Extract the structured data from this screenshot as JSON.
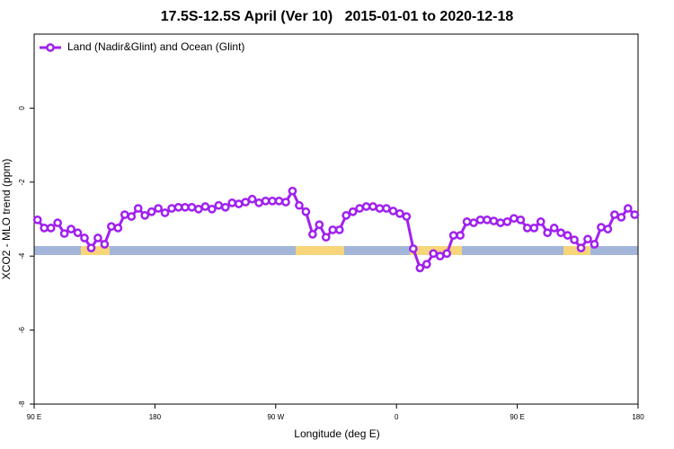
{
  "chart_data": {
    "type": "line",
    "title": "17.5S-12.5S April (Ver 10)   2015-01-01 to 2020-12-18",
    "xlabel": "Longitude (deg E)",
    "ylabel": "XCO2 - MLO trend (ppm)",
    "xlim": [
      90,
      540
    ],
    "ylim": [
      -8,
      2
    ],
    "xticks": [
      {
        "value": 90,
        "label": "90 E"
      },
      180,
      {
        "value": 270,
        "label": "90 W"
      },
      {
        "value": 360,
        "label": "0"
      },
      {
        "value": 450,
        "label": "90 E"
      },
      {
        "value": 540,
        "label": "180"
      }
    ],
    "yticks": [
      0,
      -2,
      -4,
      -6,
      -8
    ],
    "legend": "upper left",
    "x": [
      92.5,
      97.5,
      102.5,
      107.5,
      112.5,
      117.5,
      122.5,
      127.5,
      132.5,
      137.5,
      142.5,
      147.5,
      152.5,
      157.5,
      162.5,
      167.5,
      172.5,
      177.5,
      182.5,
      187.5,
      192.5,
      197.5,
      202.5,
      207.5,
      212.5,
      217.5,
      222.5,
      227.5,
      232.5,
      237.5,
      242.5,
      247.5,
      252.5,
      257.5,
      262.5,
      267.5,
      272.5,
      277.5,
      282.5,
      287.5,
      292.5,
      297.5,
      302.5,
      307.5,
      312.5,
      317.5,
      322.5,
      327.5,
      332.5,
      337.5,
      342.5,
      347.5,
      352.5,
      357.5,
      362.5,
      367.5,
      372.5,
      377.5,
      382.5,
      387.5,
      392.5,
      397.5,
      402.5,
      407.5,
      412.5,
      417.5,
      422.5,
      427.5,
      432.5,
      437.5,
      442.5,
      447.5,
      452.5,
      457.5,
      462.5,
      467.5,
      472.5,
      477.5,
      482.5,
      487.5,
      492.5,
      497.5,
      502.5,
      507.5,
      512.5,
      517.5,
      522.5,
      527.5,
      532.5,
      537.5
    ],
    "series": [
      {
        "name": "Land (Nadir&Glint) and Ocean (Glint)",
        "color": "#a020f0",
        "values": [
          -3.02,
          -3.24,
          -3.24,
          -3.1,
          -3.39,
          -3.27,
          -3.37,
          -3.51,
          -3.78,
          -3.51,
          -3.68,
          -3.2,
          -3.24,
          -2.88,
          -2.93,
          -2.71,
          -2.9,
          -2.8,
          -2.71,
          -2.83,
          -2.71,
          -2.68,
          -2.68,
          -2.68,
          -2.73,
          -2.66,
          -2.73,
          -2.63,
          -2.68,
          -2.56,
          -2.59,
          -2.54,
          -2.46,
          -2.56,
          -2.51,
          -2.51,
          -2.51,
          -2.54,
          -2.24,
          -2.63,
          -2.8,
          -3.41,
          -3.15,
          -3.49,
          -3.29,
          -3.29,
          -2.9,
          -2.8,
          -2.71,
          -2.66,
          -2.66,
          -2.71,
          -2.71,
          -2.78,
          -2.85,
          -2.93,
          -3.8,
          -4.32,
          -4.22,
          -3.93,
          -4.0,
          -3.93,
          -3.44,
          -3.44,
          -3.07,
          -3.1,
          -3.02,
          -3.02,
          -3.05,
          -3.1,
          -3.07,
          -2.98,
          -3.02,
          -3.24,
          -3.24,
          -3.07,
          -3.37,
          -3.24,
          -3.37,
          -3.44,
          -3.56,
          -3.78,
          -3.54,
          -3.68,
          -3.22,
          -3.27,
          -2.88,
          -2.95,
          -2.71,
          -2.88
        ]
      }
    ]
  }
}
